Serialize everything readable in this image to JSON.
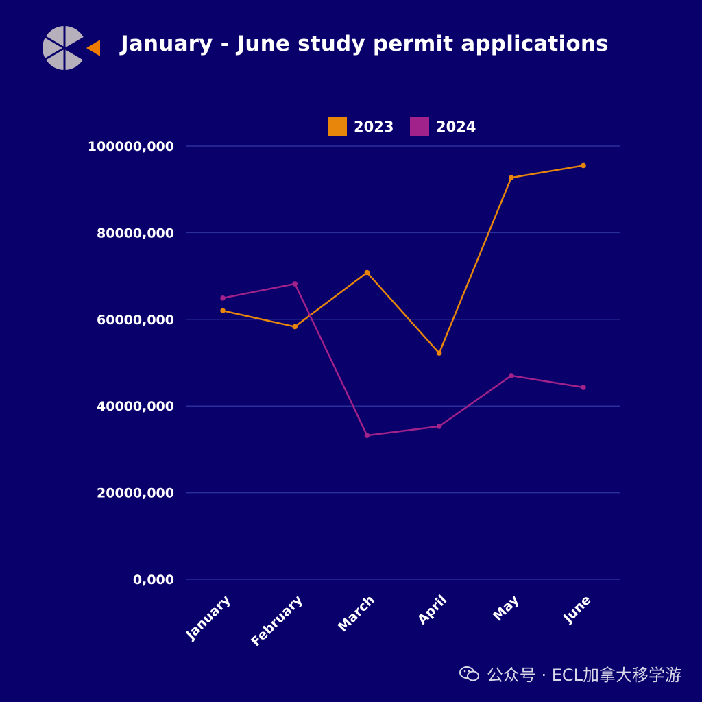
{
  "header": {
    "title": "January - June study permit applications"
  },
  "watermark": {
    "text": "公众号 · ECL加拿大移学游"
  },
  "colors": {
    "background": "#09006b",
    "grid": "#2b2f9a",
    "series_2023": "#e8860c",
    "series_2024": "#a0228a"
  },
  "chart_data": {
    "type": "line",
    "title": "January - June study permit applications",
    "xlabel": "",
    "ylabel": "",
    "categories": [
      "January",
      "February",
      "March",
      "April",
      "May",
      "June"
    ],
    "yticks": [
      {
        "value": 0,
        "label": "0,000"
      },
      {
        "value": 20000000,
        "label": "20000,000"
      },
      {
        "value": 40000000,
        "label": "40000,000"
      },
      {
        "value": 60000000,
        "label": "60000,000"
      },
      {
        "value": 80000000,
        "label": "80000,000"
      },
      {
        "value": 100000000,
        "label": "100000,000"
      }
    ],
    "ylim": [
      0,
      100000000
    ],
    "grid": true,
    "legend": "top",
    "series": [
      {
        "name": "2023",
        "color": "#e8860c",
        "values": [
          62000000,
          58300000,
          70800000,
          52200000,
          92700000,
          95500000
        ]
      },
      {
        "name": "2024",
        "color": "#a0228a",
        "values": [
          64900000,
          68200000,
          33200000,
          35300000,
          47000000,
          44300000
        ]
      }
    ]
  }
}
